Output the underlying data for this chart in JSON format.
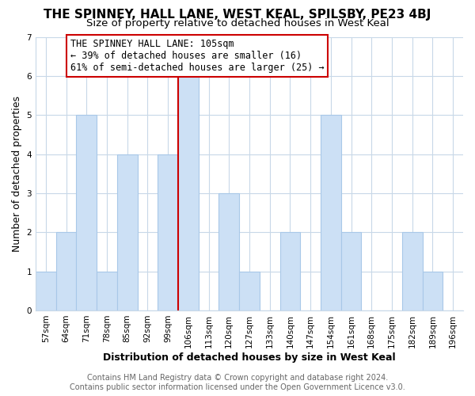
{
  "title": "THE SPINNEY, HALL LANE, WEST KEAL, SPILSBY, PE23 4BJ",
  "subtitle": "Size of property relative to detached houses in West Keal",
  "xlabel": "Distribution of detached houses by size in West Keal",
  "ylabel": "Number of detached properties",
  "bar_labels": [
    "57sqm",
    "64sqm",
    "71sqm",
    "78sqm",
    "85sqm",
    "92sqm",
    "99sqm",
    "106sqm",
    "113sqm",
    "120sqm",
    "127sqm",
    "133sqm",
    "140sqm",
    "147sqm",
    "154sqm",
    "161sqm",
    "168sqm",
    "175sqm",
    "182sqm",
    "189sqm",
    "196sqm"
  ],
  "bar_values": [
    1,
    2,
    5,
    1,
    4,
    0,
    4,
    6,
    0,
    3,
    1,
    0,
    2,
    0,
    5,
    2,
    0,
    0,
    2,
    1,
    0
  ],
  "bar_color": "#cce0f5",
  "bar_edge_color": "#a8c8e8",
  "highlight_index": 7,
  "highlight_line_color": "#cc0000",
  "ylim": [
    0,
    7
  ],
  "yticks": [
    0,
    1,
    2,
    3,
    4,
    5,
    6,
    7
  ],
  "annotation_title": "THE SPINNEY HALL LANE: 105sqm",
  "annotation_line1": "← 39% of detached houses are smaller (16)",
  "annotation_line2": "61% of semi-detached houses are larger (25) →",
  "annotation_box_color": "#ffffff",
  "annotation_box_edge": "#cc0000",
  "footer_line1": "Contains HM Land Registry data © Crown copyright and database right 2024.",
  "footer_line2": "Contains public sector information licensed under the Open Government Licence v3.0.",
  "background_color": "#ffffff",
  "grid_color": "#c8d8e8",
  "title_fontsize": 11,
  "subtitle_fontsize": 9.5,
  "axis_label_fontsize": 9,
  "tick_fontsize": 7.5,
  "footer_fontsize": 7,
  "annotation_fontsize": 8.5
}
